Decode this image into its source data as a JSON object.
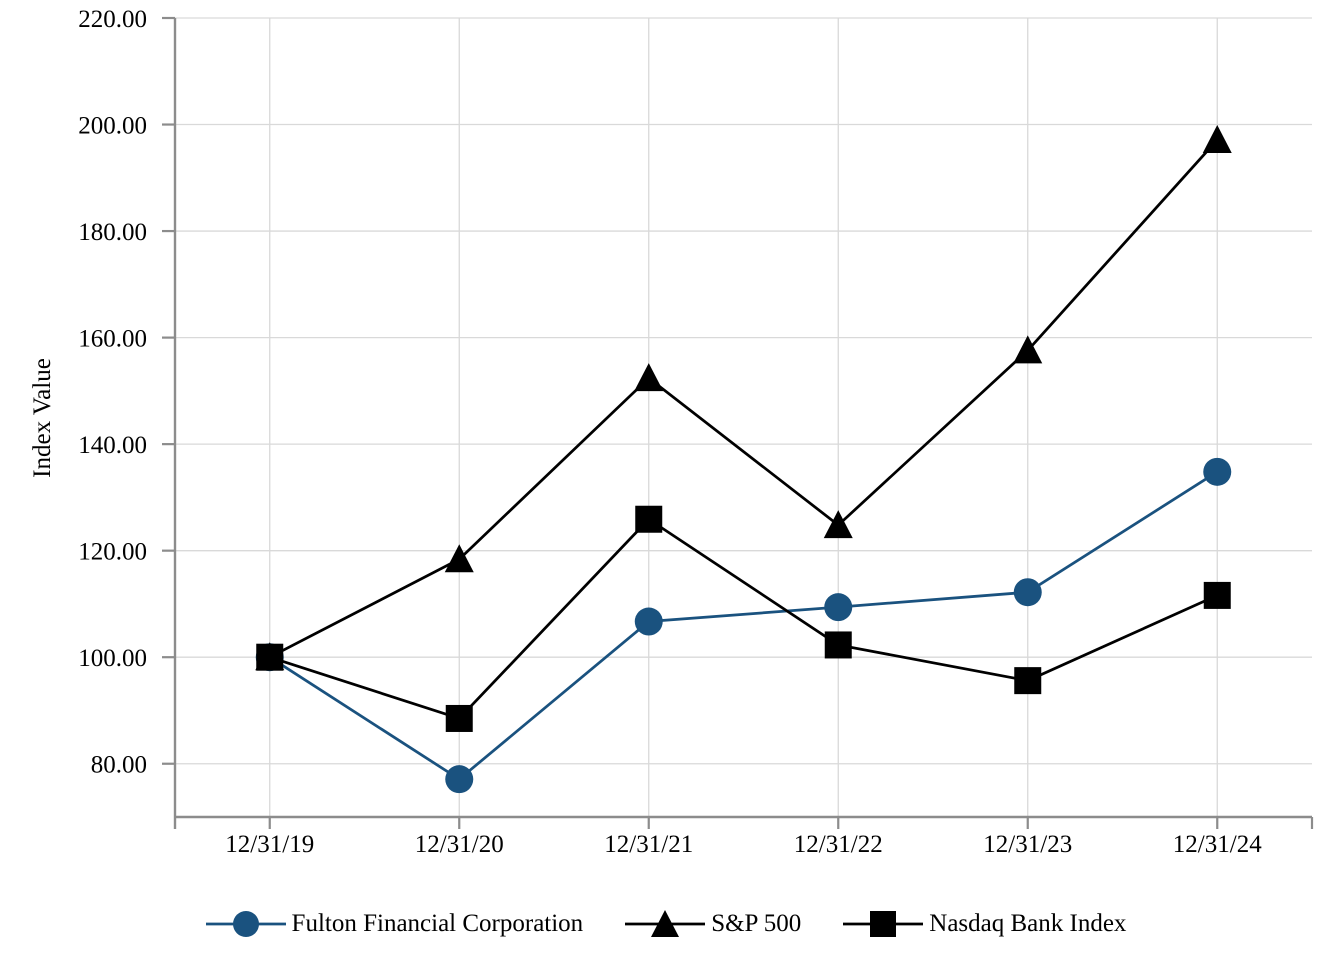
{
  "page": {
    "background": "#FFFFFF"
  },
  "chart_data": {
    "type": "line",
    "title": "",
    "xlabel": "",
    "ylabel": "Index Value",
    "categories": [
      "12/31/19",
      "12/31/20",
      "12/31/21",
      "12/31/22",
      "12/31/23",
      "12/31/24"
    ],
    "series": [
      {
        "name": "Fulton Financial Corporation",
        "marker": "circle",
        "color": "#1A527F",
        "values": [
          100.0,
          77.1,
          106.7,
          109.4,
          112.2,
          134.8
        ]
      },
      {
        "name": "S&P 500",
        "marker": "triangle",
        "color": "#000000",
        "values": [
          100.0,
          118.4,
          152.4,
          124.8,
          157.6,
          197.1
        ]
      },
      {
        "name": "Nasdaq Bank Index",
        "marker": "square",
        "color": "#000000",
        "values": [
          100.0,
          88.5,
          125.9,
          102.3,
          95.6,
          111.6
        ]
      }
    ],
    "ylim": [
      70,
      220
    ],
    "yticks": [
      220,
      200,
      180,
      160,
      140,
      120,
      100,
      80
    ],
    "ytick_format": "0.00",
    "grid": true,
    "legend_position": "bottom",
    "colors": {
      "axis": "#8C8C8C",
      "grid": "#D9D9D9",
      "text": "#000000",
      "accent_blue": "#1A527F",
      "series_black": "#000000"
    }
  }
}
